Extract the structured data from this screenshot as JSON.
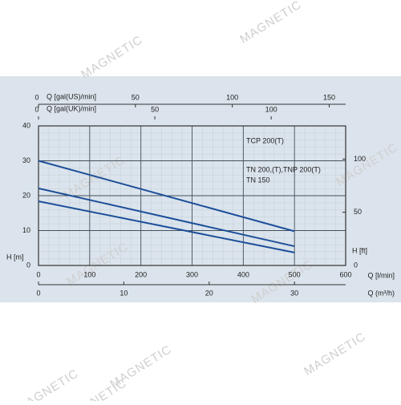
{
  "chart_data": {
    "type": "line",
    "watermark": "MAGNETIC",
    "xlabel": "Q [l/min]",
    "xlim": [
      0,
      600
    ],
    "xticks": [
      0,
      100,
      200,
      300,
      400,
      500,
      600
    ],
    "ylabel": "H [m]",
    "ylim": [
      0,
      40
    ],
    "yticks": [
      0,
      10,
      20,
      30,
      40
    ],
    "y2label": "H [ft]",
    "y2lim": [
      0,
      131.2
    ],
    "y2ticks": [
      0,
      50,
      100
    ],
    "extra_x_axes": [
      {
        "label": "Q [gal(US)/min]",
        "xlim": [
          0,
          158.5
        ],
        "xticks": [
          0,
          50,
          100,
          150
        ],
        "position": "top"
      },
      {
        "label": "Q [gal(UK)/min]",
        "xlim": [
          0,
          132
        ],
        "xticks": [
          0,
          50,
          100
        ],
        "position": "top"
      },
      {
        "label": "Q (m³/h)",
        "xlim": [
          0,
          36
        ],
        "xticks": [
          0,
          10,
          20,
          30
        ],
        "position": "bottom"
      }
    ],
    "grid": true,
    "series": [
      {
        "name": "TCP 200(T)",
        "color": "#1d4f9a",
        "x": [
          0,
          500
        ],
        "values": [
          30,
          9.8
        ]
      },
      {
        "name": "TN 200,(T),TNP 200(T)",
        "color": "#1d4f9a",
        "x": [
          0,
          500
        ],
        "values": [
          22.1,
          5.5
        ]
      },
      {
        "name": "TN 150",
        "color": "#1d4f9a",
        "x": [
          0,
          500
        ],
        "values": [
          18.4,
          3.7
        ]
      }
    ]
  }
}
